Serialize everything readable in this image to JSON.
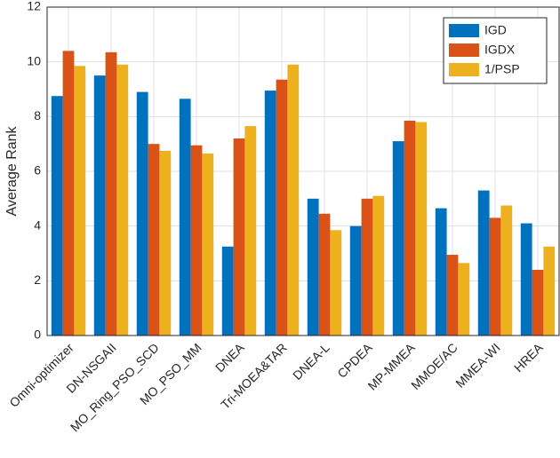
{
  "chart_data": {
    "type": "bar",
    "y_label": "Average Rank",
    "categories": [
      "Omni-optimizer",
      "DN-NSGAII",
      "MO_Ring_PSO_SCD",
      "MO_PSO_MM",
      "DNEA",
      "Tri-MOEA&TAR",
      "DNEA-L",
      "CPDEA",
      "MP-MMEA",
      "MMOE/AC",
      "MMEA-WI",
      "HREA"
    ],
    "series": [
      {
        "name": "IGD",
        "color": "#0072bd",
        "values": [
          8.75,
          9.5,
          8.9,
          8.65,
          3.25,
          8.95,
          5.0,
          4.0,
          7.1,
          4.65,
          5.3,
          4.1
        ]
      },
      {
        "name": "IGDX",
        "color": "#d95319",
        "values": [
          10.4,
          10.35,
          7.0,
          6.95,
          7.2,
          9.35,
          4.45,
          5.0,
          7.85,
          2.95,
          4.3,
          2.4
        ]
      },
      {
        "name": "1/PSP",
        "color": "#edb120",
        "values": [
          9.85,
          9.9,
          6.75,
          6.65,
          7.65,
          9.9,
          3.85,
          5.1,
          7.8,
          2.65,
          4.75,
          3.25
        ]
      }
    ],
    "ylim": [
      0,
      12
    ],
    "yticks": [
      0,
      2,
      4,
      6,
      8,
      10,
      12
    ],
    "grid": true,
    "legend": "top-right"
  }
}
